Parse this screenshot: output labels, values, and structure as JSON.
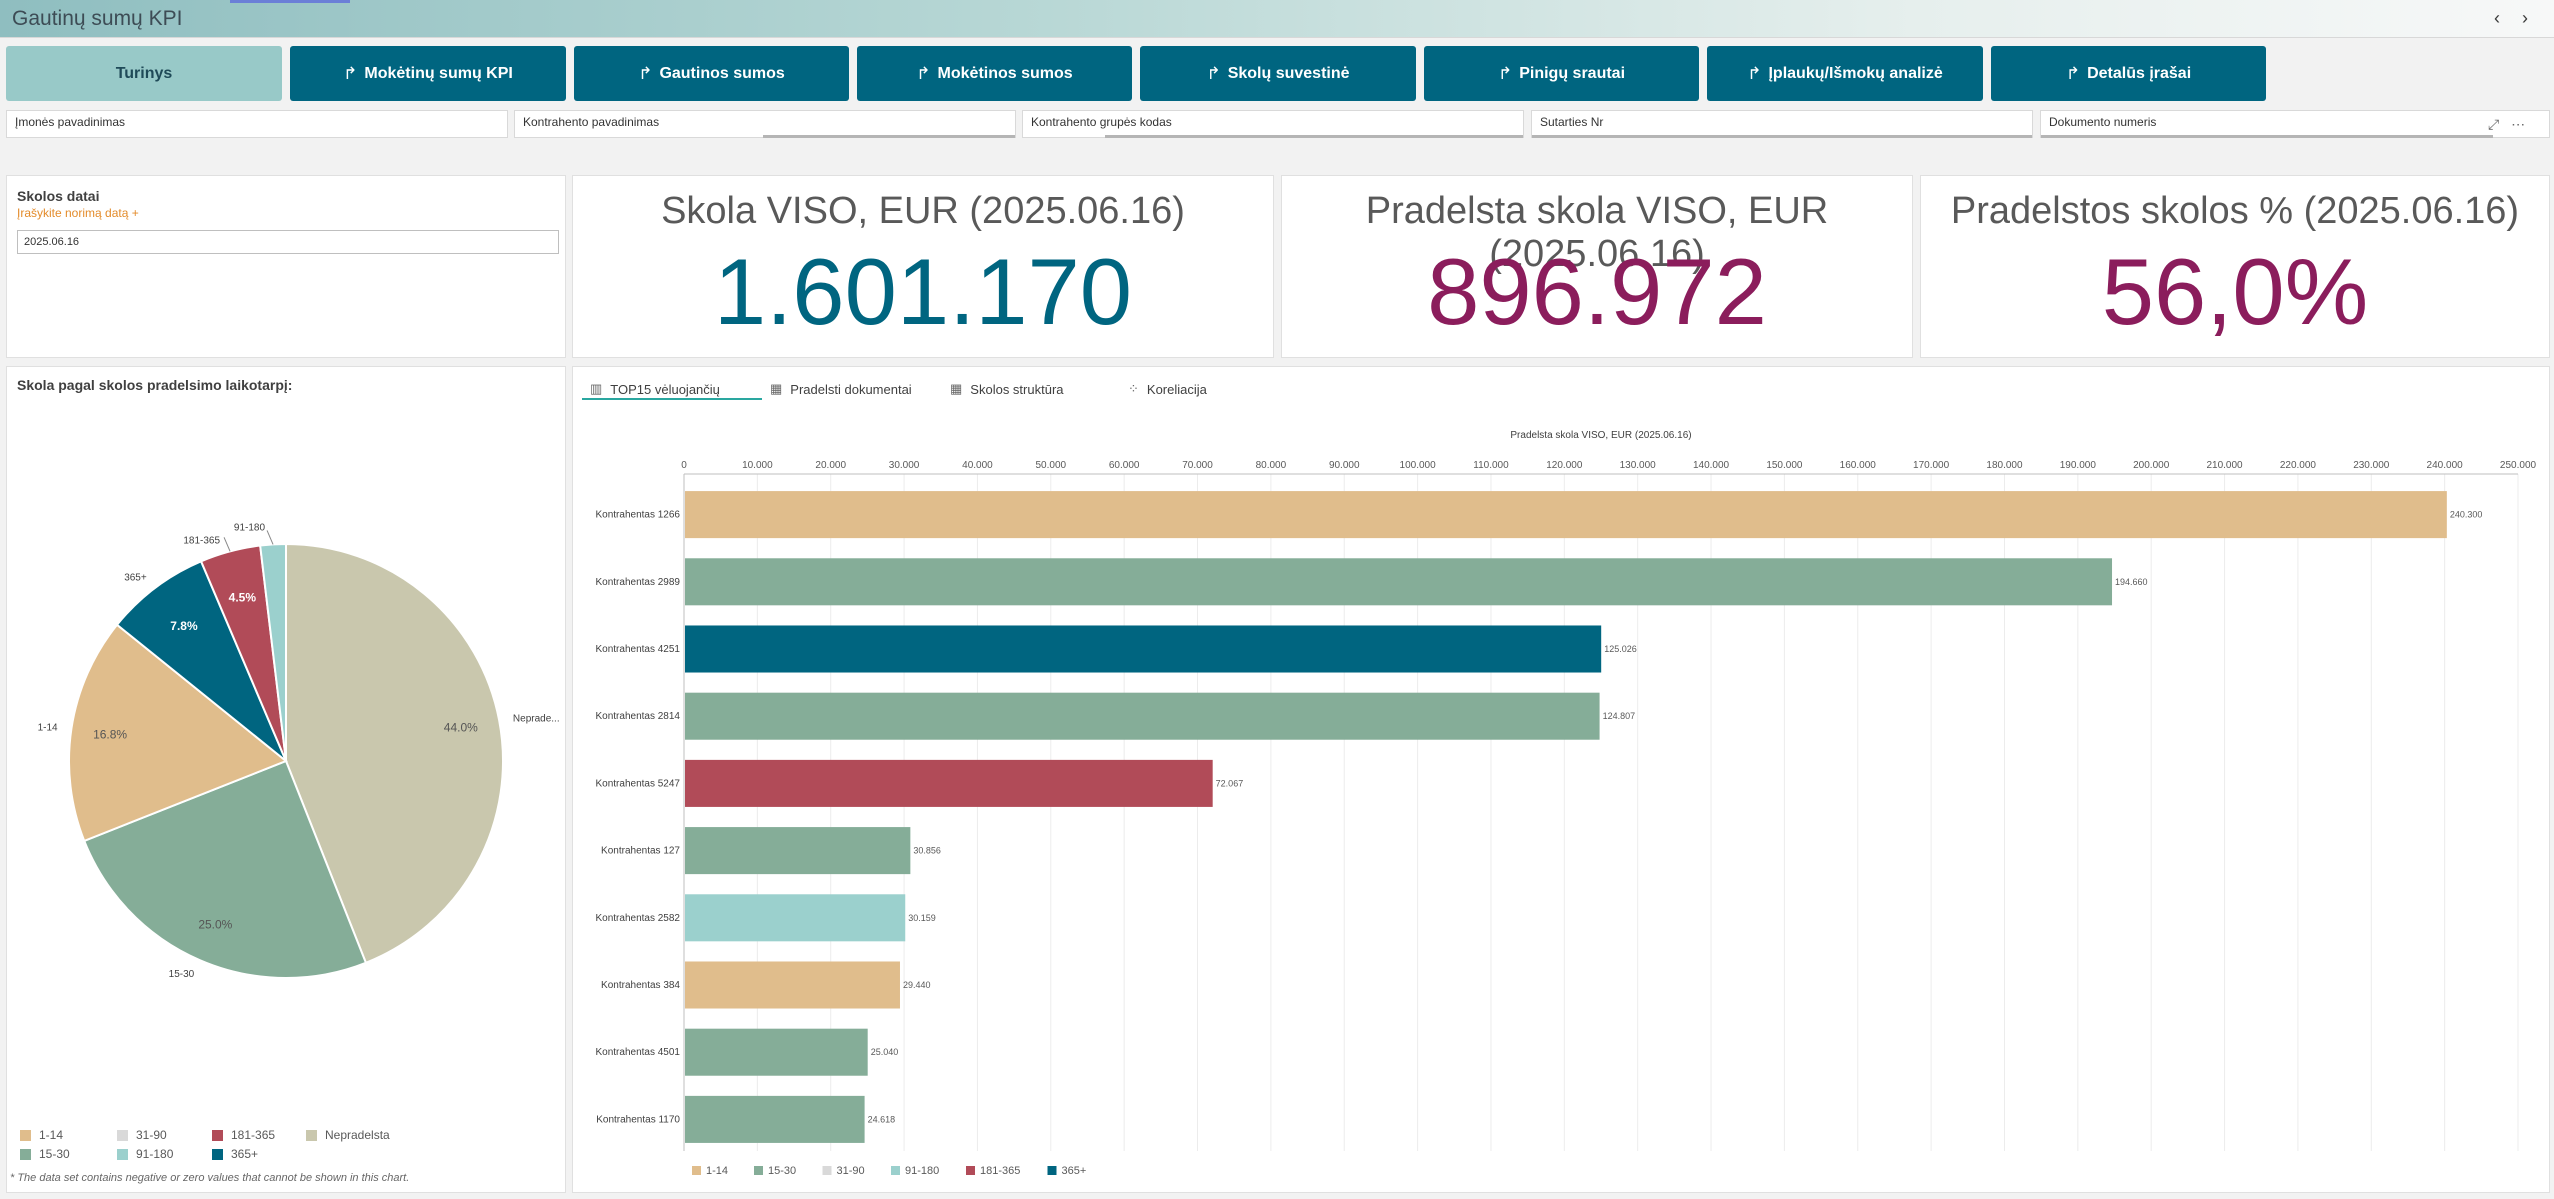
{
  "app": {
    "title": "Gautinų sumų KPI",
    "nav_prev": "‹",
    "nav_next": "›"
  },
  "nav_buttons": [
    {
      "label": "Turinys",
      "icon": "",
      "active": true
    },
    {
      "label": "Mokėtinų sumų KPI",
      "icon": "share-arrow-icon",
      "active": false
    },
    {
      "label": "Gautinos sumos",
      "icon": "share-arrow-icon",
      "active": false
    },
    {
      "label": "Mokėtinos sumos",
      "icon": "share-arrow-icon",
      "active": false
    },
    {
      "label": "Skolų suvestinė",
      "icon": "share-arrow-icon",
      "active": false
    },
    {
      "label": "Pinigų srautai",
      "icon": "share-arrow-icon",
      "active": false
    },
    {
      "label": "Įplaukų/Išmokų analizė",
      "icon": "share-arrow-icon",
      "active": false
    },
    {
      "label": "Detalūs įrašai",
      "icon": "share-arrow-icon",
      "active": false
    }
  ],
  "filters": [
    "Įmonės pavadinimas",
    "Kontrahento pavadinimas",
    "Kontrahento grupės kodas",
    "Sutarties Nr",
    "Dokumento numeris"
  ],
  "date_card": {
    "title": "Skolos datai",
    "hint": "Įrašykite norimą datą +",
    "value": "2025.06.16"
  },
  "kpis": [
    {
      "title": "Skola VISO, EUR (2025.06.16)",
      "value": "1.601.170",
      "color": "#006580"
    },
    {
      "title": "Pradelsta skola VISO, EUR (2025.06.16)",
      "value": "896.972",
      "color": "#8b1d5c"
    },
    {
      "title": "Pradelstos skolos % (2025.06.16)",
      "value": "56,0%",
      "color": "#8b1d5c"
    }
  ],
  "pie": {
    "title": "Skola pagal skolos pradelsimo laikotarpį:",
    "note": "* The data set contains negative or zero values that cannot be shown in this chart.",
    "legend": [
      {
        "label": "1-14",
        "color": "#e0bd8c"
      },
      {
        "label": "31-90",
        "color": "#d9d9d9"
      },
      {
        "label": "181-365",
        "color": "#b14b58"
      },
      {
        "label": "Nepradelsta",
        "color": "#c9c7ad"
      },
      {
        "label": "15-30",
        "color": "#85ad98"
      },
      {
        "label": "91-180",
        "color": "#9bd0cd"
      },
      {
        "label": "365+",
        "color": "#006580"
      }
    ]
  },
  "tabs": [
    {
      "label": "TOP15 vėluojančių",
      "icon": "bar-chart-icon",
      "active": true
    },
    {
      "label": "Pradelsti dokumentai",
      "icon": "table-icon",
      "active": false
    },
    {
      "label": "Skolos struktūra",
      "icon": "table-icon",
      "active": false
    },
    {
      "label": "Koreliacija",
      "icon": "scatter-icon",
      "active": false
    }
  ],
  "chart_data": [
    {
      "type": "pie",
      "title": "Skola pagal skolos pradelsimo laikotarpį:",
      "slices": [
        {
          "label": "Nepradelsta",
          "display_label": "Neprade...",
          "value": 44.0,
          "pct_label": "44.0%",
          "color": "#c9c7ad"
        },
        {
          "label": "15-30",
          "value": 25.0,
          "pct_label": "25.0%",
          "color": "#85ad98"
        },
        {
          "label": "1-14",
          "value": 16.8,
          "pct_label": "16.8%",
          "color": "#e0bd8c"
        },
        {
          "label": "365+",
          "value": 7.8,
          "pct_label": "7.8%",
          "color": "#006580"
        },
        {
          "label": "181-365",
          "value": 4.5,
          "pct_label": "4.5%",
          "color": "#b14b58"
        },
        {
          "label": "91-180",
          "value": 1.9,
          "pct_label": "",
          "color": "#9bd0cd"
        }
      ]
    },
    {
      "type": "bar",
      "orientation": "horizontal",
      "title": "Pradelsta skola VISO, EUR (2025.06.16)",
      "xlim": [
        0,
        250000
      ],
      "ticks": [
        0,
        10000,
        20000,
        30000,
        40000,
        50000,
        60000,
        70000,
        80000,
        90000,
        100000,
        110000,
        120000,
        130000,
        140000,
        150000,
        160000,
        170000,
        180000,
        190000,
        200000,
        210000,
        220000,
        230000,
        240000,
        250000
      ],
      "tick_labels": [
        "0",
        "10.000",
        "20.000",
        "30.000",
        "40.000",
        "50.000",
        "60.000",
        "70.000",
        "80.000",
        "90.000",
        "100.000",
        "110.000",
        "120.000",
        "130.000",
        "140.000",
        "150.000",
        "160.000",
        "170.000",
        "180.000",
        "190.000",
        "200.000",
        "210.000",
        "220.000",
        "230.000",
        "240.000",
        "250.000"
      ],
      "categories": [
        "Kontrahentas 1266",
        "Kontrahentas 2989",
        "Kontrahentas 4251",
        "Kontrahentas 2814",
        "Kontrahentas 5247",
        "Kontrahentas 127",
        "Kontrahentas 2582",
        "Kontrahentas 384",
        "Kontrahentas 4501",
        "Kontrahentas 1170"
      ],
      "values": [
        240300,
        194660,
        125026,
        124807,
        72067,
        30856,
        30159,
        29440,
        25040,
        24618
      ],
      "value_labels": [
        "240.300",
        "194.660",
        "125.026",
        "124.807",
        "72.067",
        "30.856",
        "30.159",
        "29.440",
        "25.040",
        "24.618"
      ],
      "colors": [
        "#e0bd8c",
        "#85ad98",
        "#006580",
        "#85ad98",
        "#b14b58",
        "#85ad98",
        "#9bd0cd",
        "#e0bd8c",
        "#85ad98",
        "#85ad98"
      ],
      "legend": [
        {
          "label": "1-14",
          "color": "#e0bd8c"
        },
        {
          "label": "15-30",
          "color": "#85ad98"
        },
        {
          "label": "31-90",
          "color": "#d9d9d9"
        },
        {
          "label": "91-180",
          "color": "#9bd0cd"
        },
        {
          "label": "181-365",
          "color": "#b14b58"
        },
        {
          "label": "365+",
          "color": "#006580"
        }
      ],
      "grid": true
    }
  ]
}
